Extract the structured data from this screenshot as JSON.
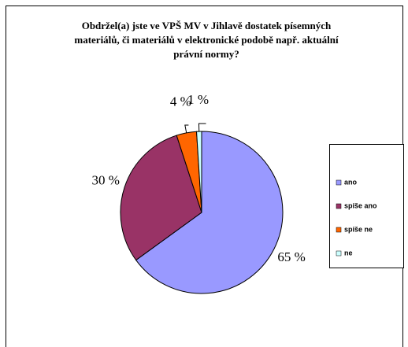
{
  "chart_data": {
    "type": "pie",
    "title": [
      "Obdržel(a) jste ve VPŠ MV v Jihlavě dostatek písemných",
      "materiálů, či materiálů v elektronické podobě např. aktuální",
      "právní normy?"
    ],
    "categories": [
      "ano",
      "spíše ano",
      "spíše ne",
      "ne"
    ],
    "values": [
      65,
      30,
      4,
      1
    ],
    "value_labels": [
      "65 %",
      "30 %",
      "4 %",
      "1 %"
    ],
    "colors": [
      "#9999ff",
      "#993366",
      "#ff6600",
      "#ccffff"
    ],
    "legend": "right"
  }
}
